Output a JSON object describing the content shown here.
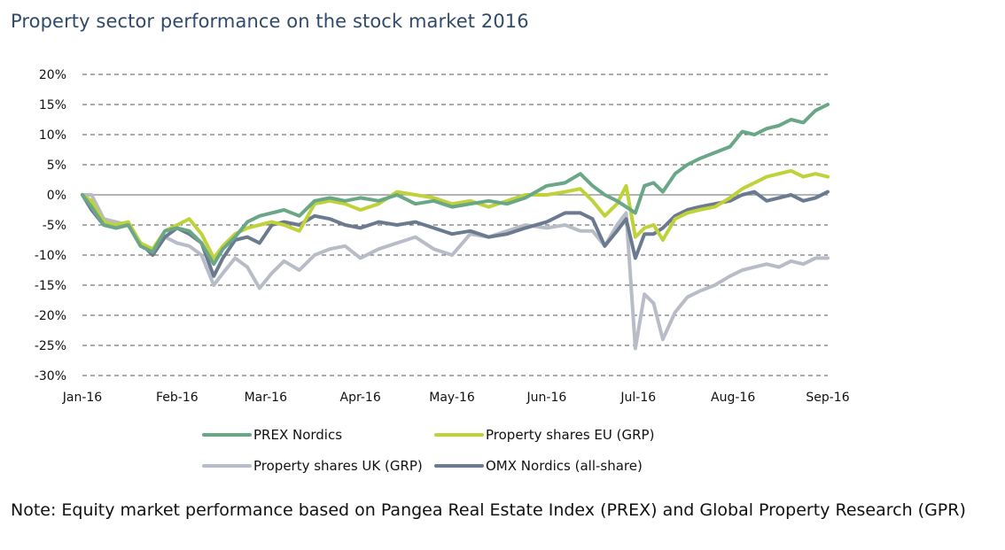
{
  "title": "Property sector performance on the stock market 2016",
  "note": "Note: Equity market performance based on Pangea Real Estate Index (PREX) and Global Property Research (GPR)",
  "chart_data": {
    "type": "line",
    "title": "Property sector performance on the stock market 2016",
    "xlabel": "",
    "ylabel": "",
    "x_tick_labels": [
      "Jan-16",
      "Feb-16",
      "Mar-16",
      "Apr-16",
      "May-16",
      "Jun-16",
      "Jul-16",
      "Aug-16",
      "Sep-16"
    ],
    "y_tick_labels": [
      "20%",
      "15%",
      "10%",
      "5%",
      "0%",
      "-5%",
      "-10%",
      "-15%",
      "-20%",
      "-25%",
      "-30%"
    ],
    "ylim": [
      -30,
      20
    ],
    "xlim": [
      "2016-01-01",
      "2016-09-01"
    ],
    "grid": "horizontal dashed",
    "legend_position": "bottom",
    "series": [
      {
        "name": "PREX Nordics",
        "color": "#6aa787",
        "points": [
          [
            "2016-01-01",
            0
          ],
          [
            "2016-01-04",
            -2
          ],
          [
            "2016-01-08",
            -5
          ],
          [
            "2016-01-12",
            -5.5
          ],
          [
            "2016-01-16",
            -5
          ],
          [
            "2016-01-20",
            -8.5
          ],
          [
            "2016-01-24",
            -9.5
          ],
          [
            "2016-01-28",
            -6
          ],
          [
            "2016-02-01",
            -5.5
          ],
          [
            "2016-02-05",
            -6
          ],
          [
            "2016-02-09",
            -8
          ],
          [
            "2016-02-13",
            -11.5
          ],
          [
            "2016-02-16",
            -9
          ],
          [
            "2016-02-20",
            -7
          ],
          [
            "2016-02-24",
            -4.5
          ],
          [
            "2016-02-28",
            -3.5
          ],
          [
            "2016-03-03",
            -3
          ],
          [
            "2016-03-07",
            -2.5
          ],
          [
            "2016-03-12",
            -3.5
          ],
          [
            "2016-03-17",
            -1
          ],
          [
            "2016-03-22",
            -0.5
          ],
          [
            "2016-03-27",
            -1
          ],
          [
            "2016-04-01",
            -0.5
          ],
          [
            "2016-04-07",
            -1
          ],
          [
            "2016-04-13",
            0
          ],
          [
            "2016-04-19",
            -1.5
          ],
          [
            "2016-04-25",
            -1
          ],
          [
            "2016-05-01",
            -2
          ],
          [
            "2016-05-07",
            -1.5
          ],
          [
            "2016-05-13",
            -1
          ],
          [
            "2016-05-19",
            -1.5
          ],
          [
            "2016-05-25",
            -0.5
          ],
          [
            "2016-06-01",
            1.5
          ],
          [
            "2016-06-07",
            2
          ],
          [
            "2016-06-12",
            3.5
          ],
          [
            "2016-06-16",
            1.5
          ],
          [
            "2016-06-20",
            0
          ],
          [
            "2016-06-24",
            -1
          ],
          [
            "2016-06-27",
            -2
          ],
          [
            "2016-06-30",
            -3
          ],
          [
            "2016-07-03",
            1.5
          ],
          [
            "2016-07-06",
            2
          ],
          [
            "2016-07-09",
            0.5
          ],
          [
            "2016-07-13",
            3.5
          ],
          [
            "2016-07-17",
            5
          ],
          [
            "2016-07-21",
            6
          ],
          [
            "2016-07-26",
            7
          ],
          [
            "2016-07-31",
            8
          ],
          [
            "2016-08-04",
            10.5
          ],
          [
            "2016-08-08",
            10
          ],
          [
            "2016-08-12",
            11
          ],
          [
            "2016-08-16",
            11.5
          ],
          [
            "2016-08-20",
            12.5
          ],
          [
            "2016-08-24",
            12
          ],
          [
            "2016-08-28",
            14
          ],
          [
            "2016-09-01",
            15
          ]
        ]
      },
      {
        "name": "Property shares EU (GRP)",
        "color": "#bfd23a",
        "points": [
          [
            "2016-01-01",
            0
          ],
          [
            "2016-01-04",
            -1
          ],
          [
            "2016-01-08",
            -4.5
          ],
          [
            "2016-01-12",
            -5
          ],
          [
            "2016-01-16",
            -4.5
          ],
          [
            "2016-01-20",
            -8
          ],
          [
            "2016-01-24",
            -9
          ],
          [
            "2016-01-28",
            -6
          ],
          [
            "2016-02-01",
            -5
          ],
          [
            "2016-02-05",
            -4
          ],
          [
            "2016-02-09",
            -6.5
          ],
          [
            "2016-02-13",
            -10.5
          ],
          [
            "2016-02-16",
            -8.5
          ],
          [
            "2016-02-20",
            -6.5
          ],
          [
            "2016-02-24",
            -5.5
          ],
          [
            "2016-02-28",
            -5
          ],
          [
            "2016-03-03",
            -4.5
          ],
          [
            "2016-03-07",
            -5
          ],
          [
            "2016-03-12",
            -6
          ],
          [
            "2016-03-17",
            -1.5
          ],
          [
            "2016-03-22",
            -1
          ],
          [
            "2016-03-27",
            -1.5
          ],
          [
            "2016-04-01",
            -2.5
          ],
          [
            "2016-04-07",
            -1.5
          ],
          [
            "2016-04-13",
            0.5
          ],
          [
            "2016-04-19",
            0
          ],
          [
            "2016-04-25",
            -0.5
          ],
          [
            "2016-05-01",
            -1.5
          ],
          [
            "2016-05-07",
            -1
          ],
          [
            "2016-05-13",
            -2
          ],
          [
            "2016-05-19",
            -1
          ],
          [
            "2016-05-25",
            0
          ],
          [
            "2016-06-01",
            0
          ],
          [
            "2016-06-07",
            0.5
          ],
          [
            "2016-06-12",
            1
          ],
          [
            "2016-06-16",
            -1
          ],
          [
            "2016-06-20",
            -3.5
          ],
          [
            "2016-06-24",
            -1.5
          ],
          [
            "2016-06-27",
            1.5
          ],
          [
            "2016-06-30",
            -7
          ],
          [
            "2016-07-03",
            -5.5
          ],
          [
            "2016-07-06",
            -5
          ],
          [
            "2016-07-09",
            -7.5
          ],
          [
            "2016-07-13",
            -4
          ],
          [
            "2016-07-17",
            -3
          ],
          [
            "2016-07-21",
            -2.5
          ],
          [
            "2016-07-26",
            -2
          ],
          [
            "2016-07-31",
            -0.5
          ],
          [
            "2016-08-04",
            1
          ],
          [
            "2016-08-08",
            2
          ],
          [
            "2016-08-12",
            3
          ],
          [
            "2016-08-16",
            3.5
          ],
          [
            "2016-08-20",
            4
          ],
          [
            "2016-08-24",
            3
          ],
          [
            "2016-08-28",
            3.5
          ],
          [
            "2016-09-01",
            3
          ]
        ]
      },
      {
        "name": "Property shares UK (GRP)",
        "color": "#b8bcc7",
        "points": [
          [
            "2016-01-01",
            0
          ],
          [
            "2016-01-04",
            0
          ],
          [
            "2016-01-08",
            -4
          ],
          [
            "2016-01-12",
            -4.5
          ],
          [
            "2016-01-16",
            -5
          ],
          [
            "2016-01-20",
            -8
          ],
          [
            "2016-01-24",
            -10
          ],
          [
            "2016-01-28",
            -7
          ],
          [
            "2016-02-01",
            -8
          ],
          [
            "2016-02-05",
            -8.5
          ],
          [
            "2016-02-09",
            -10
          ],
          [
            "2016-02-13",
            -15
          ],
          [
            "2016-02-16",
            -13
          ],
          [
            "2016-02-20",
            -10.5
          ],
          [
            "2016-02-24",
            -12
          ],
          [
            "2016-02-28",
            -15.5
          ],
          [
            "2016-03-03",
            -13
          ],
          [
            "2016-03-07",
            -11
          ],
          [
            "2016-03-12",
            -12.5
          ],
          [
            "2016-03-17",
            -10
          ],
          [
            "2016-03-22",
            -9
          ],
          [
            "2016-03-27",
            -8.5
          ],
          [
            "2016-04-01",
            -10.5
          ],
          [
            "2016-04-07",
            -9
          ],
          [
            "2016-04-13",
            -8
          ],
          [
            "2016-04-19",
            -7
          ],
          [
            "2016-04-25",
            -9
          ],
          [
            "2016-05-01",
            -10
          ],
          [
            "2016-05-07",
            -6.5
          ],
          [
            "2016-05-13",
            -7
          ],
          [
            "2016-05-19",
            -6
          ],
          [
            "2016-05-25",
            -5
          ],
          [
            "2016-06-01",
            -5.5
          ],
          [
            "2016-06-07",
            -5
          ],
          [
            "2016-06-12",
            -6
          ],
          [
            "2016-06-16",
            -6
          ],
          [
            "2016-06-20",
            -8.5
          ],
          [
            "2016-06-24",
            -5
          ],
          [
            "2016-06-27",
            -3
          ],
          [
            "2016-06-30",
            -25.5
          ],
          [
            "2016-07-03",
            -16.5
          ],
          [
            "2016-07-06",
            -18
          ],
          [
            "2016-07-09",
            -24
          ],
          [
            "2016-07-13",
            -19.5
          ],
          [
            "2016-07-17",
            -17
          ],
          [
            "2016-07-21",
            -16
          ],
          [
            "2016-07-26",
            -15
          ],
          [
            "2016-07-31",
            -13.5
          ],
          [
            "2016-08-04",
            -12.5
          ],
          [
            "2016-08-08",
            -12
          ],
          [
            "2016-08-12",
            -11.5
          ],
          [
            "2016-08-16",
            -12
          ],
          [
            "2016-08-20",
            -11
          ],
          [
            "2016-08-24",
            -11.5
          ],
          [
            "2016-08-28",
            -10.5
          ],
          [
            "2016-09-01",
            -10.5
          ]
        ]
      },
      {
        "name": "OMX Nordics (all-share)",
        "color": "#6b7a8f",
        "points": [
          [
            "2016-01-01",
            0
          ],
          [
            "2016-01-04",
            -2.5
          ],
          [
            "2016-01-08",
            -5
          ],
          [
            "2016-01-12",
            -5.5
          ],
          [
            "2016-01-16",
            -5
          ],
          [
            "2016-01-20",
            -8
          ],
          [
            "2016-01-24",
            -10
          ],
          [
            "2016-01-28",
            -7
          ],
          [
            "2016-02-01",
            -5.5
          ],
          [
            "2016-02-05",
            -6.5
          ],
          [
            "2016-02-09",
            -8
          ],
          [
            "2016-02-13",
            -13.5
          ],
          [
            "2016-02-16",
            -10.5
          ],
          [
            "2016-02-20",
            -7.5
          ],
          [
            "2016-02-24",
            -7
          ],
          [
            "2016-02-28",
            -8
          ],
          [
            "2016-03-03",
            -5
          ],
          [
            "2016-03-07",
            -4.5
          ],
          [
            "2016-03-12",
            -5
          ],
          [
            "2016-03-17",
            -3.5
          ],
          [
            "2016-03-22",
            -4
          ],
          [
            "2016-03-27",
            -5
          ],
          [
            "2016-04-01",
            -5.5
          ],
          [
            "2016-04-07",
            -4.5
          ],
          [
            "2016-04-13",
            -5
          ],
          [
            "2016-04-19",
            -4.5
          ],
          [
            "2016-04-25",
            -5.5
          ],
          [
            "2016-05-01",
            -6.5
          ],
          [
            "2016-05-07",
            -6
          ],
          [
            "2016-05-13",
            -7
          ],
          [
            "2016-05-19",
            -6.5
          ],
          [
            "2016-05-25",
            -5.5
          ],
          [
            "2016-06-01",
            -4.5
          ],
          [
            "2016-06-07",
            -3
          ],
          [
            "2016-06-12",
            -3
          ],
          [
            "2016-06-16",
            -4
          ],
          [
            "2016-06-20",
            -8.5
          ],
          [
            "2016-06-24",
            -6
          ],
          [
            "2016-06-27",
            -4
          ],
          [
            "2016-06-30",
            -10.5
          ],
          [
            "2016-07-03",
            -6.5
          ],
          [
            "2016-07-06",
            -6.5
          ],
          [
            "2016-07-09",
            -5.5
          ],
          [
            "2016-07-13",
            -3.5
          ],
          [
            "2016-07-17",
            -2.5
          ],
          [
            "2016-07-21",
            -2
          ],
          [
            "2016-07-26",
            -1.5
          ],
          [
            "2016-07-31",
            -1
          ],
          [
            "2016-08-04",
            0
          ],
          [
            "2016-08-08",
            0.5
          ],
          [
            "2016-08-12",
            -1
          ],
          [
            "2016-08-16",
            -0.5
          ],
          [
            "2016-08-20",
            0
          ],
          [
            "2016-08-24",
            -1
          ],
          [
            "2016-08-28",
            -0.5
          ],
          [
            "2016-09-01",
            0.5
          ]
        ]
      }
    ]
  }
}
